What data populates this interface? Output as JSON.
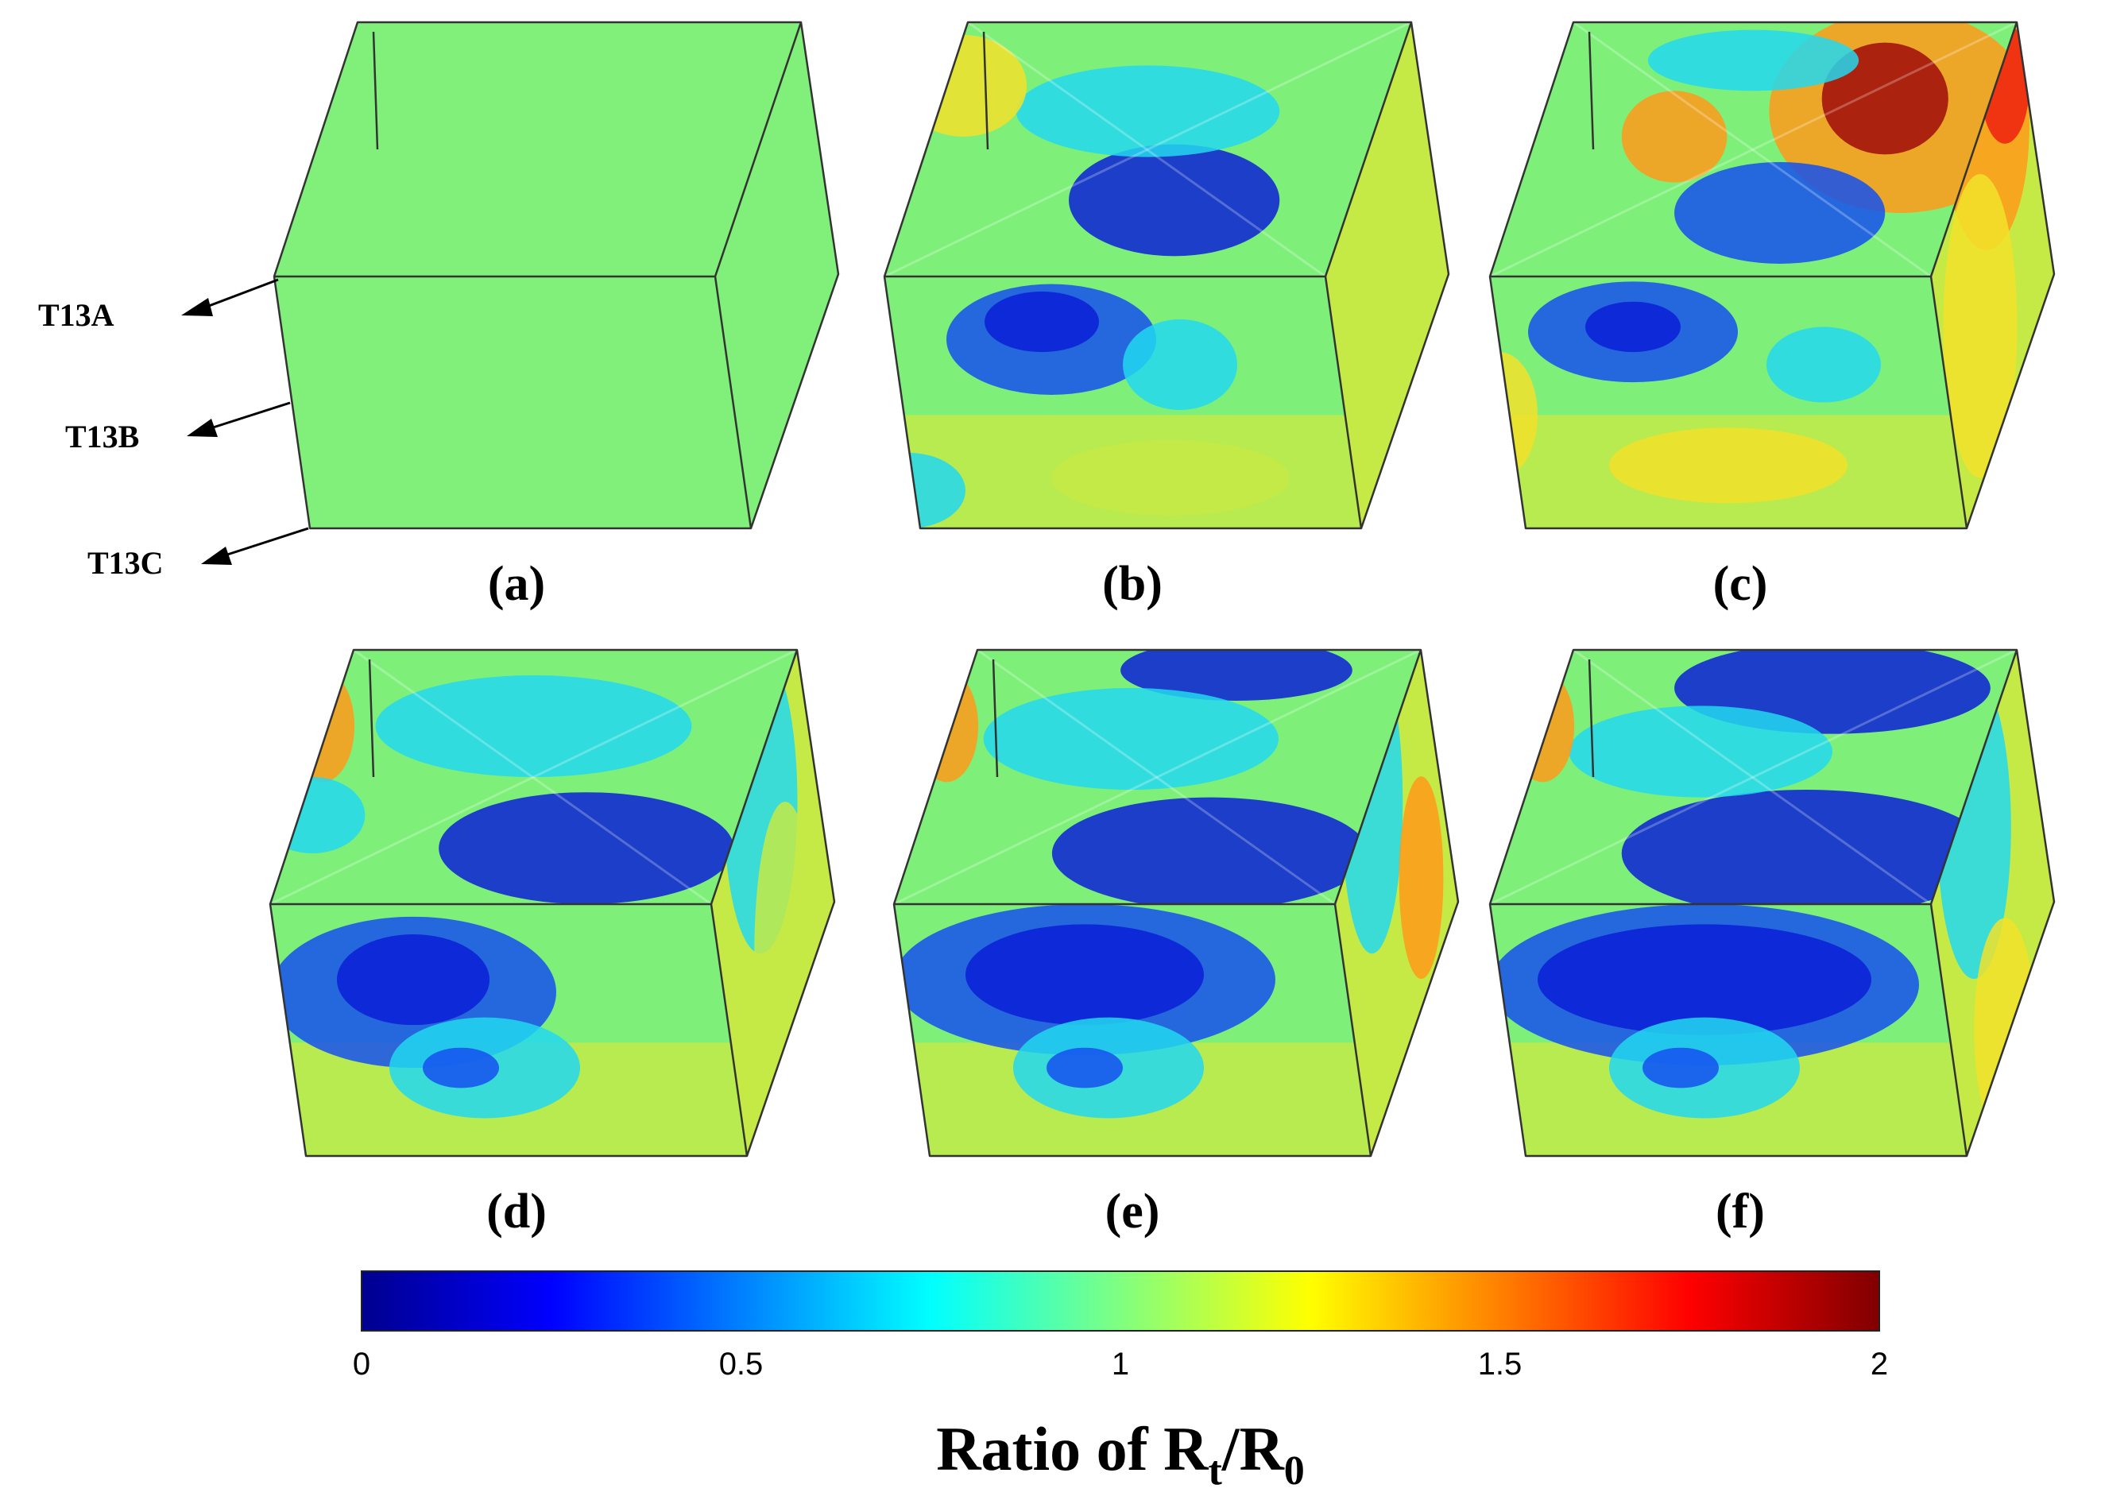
{
  "panels": [
    {
      "label": "(a)"
    },
    {
      "label": "(b)"
    },
    {
      "label": "(c)"
    },
    {
      "label": "(d)"
    },
    {
      "label": "(e)"
    },
    {
      "label": "(f)"
    }
  ],
  "layer_labels": [
    "T13A",
    "T13B",
    "T13C"
  ],
  "colorbar": {
    "title_prefix": "Ratio of R",
    "title_sub1": "t",
    "title_slash": "/R",
    "title_sub2": "0",
    "ticks": [
      "0",
      "0.5",
      "1",
      "1.5",
      "2"
    ],
    "range": [
      0,
      2
    ],
    "colormap": "jet",
    "colors": [
      "#00008f",
      "#0000ff",
      "#0080ff",
      "#00ffff",
      "#80ff80",
      "#ffff00",
      "#ff8000",
      "#ff0000",
      "#800000"
    ]
  },
  "colors": {
    "uniform_green": "#80f07a",
    "deep_blue": "#0a1fd6",
    "blue": "#1550f0",
    "cyan": "#22d8f0",
    "green": "#7ef07a",
    "yellow_green": "#c6ea45",
    "yellow": "#f2e22a",
    "orange": "#ff9a1a",
    "red": "#ee2010",
    "dark_red": "#a00a0a",
    "edge": "#333333"
  }
}
